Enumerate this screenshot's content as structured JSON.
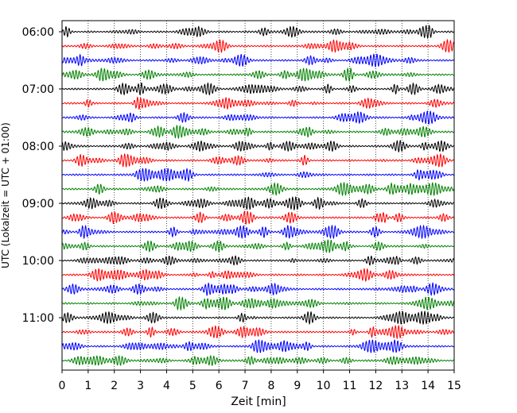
{
  "chart_data": {
    "type": "line",
    "subtype": "helicorder",
    "title": "",
    "xlabel": "Zeit  [min]",
    "ylabel": "UTC (Lokalzeit = UTC + 01:00)",
    "xlim": [
      0,
      15
    ],
    "x_ticks": [
      0,
      1,
      2,
      3,
      4,
      5,
      6,
      7,
      8,
      9,
      10,
      11,
      12,
      13,
      14,
      15
    ],
    "x_tick_labels": [
      "0",
      "1",
      "2",
      "3",
      "4",
      "5",
      "6",
      "7",
      "8",
      "9",
      "10",
      "11",
      "12",
      "13",
      "14",
      "15"
    ],
    "y_tick_labels": [
      "06:00",
      "07:00",
      "08:00",
      "09:00",
      "10:00",
      "11:00"
    ],
    "trace_minutes": 15,
    "traces_per_label": 4,
    "trace_count": 24,
    "grid": "vertical dotted",
    "colors": [
      "#000000",
      "#ff0000",
      "#0000ff",
      "#008000"
    ]
  }
}
